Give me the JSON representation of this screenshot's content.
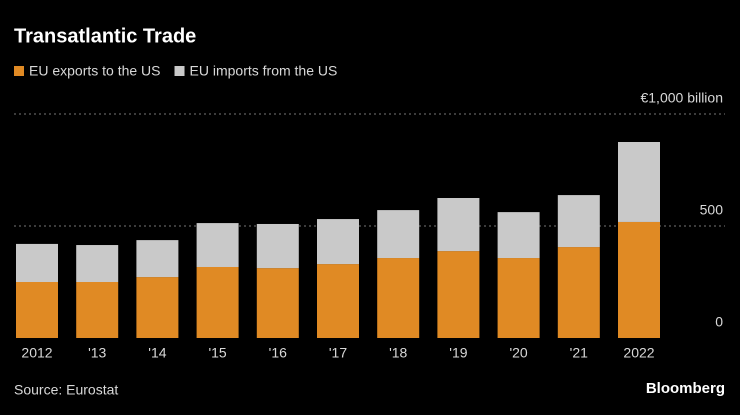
{
  "chart_data": {
    "type": "bar",
    "stacked": true,
    "title": "Transatlantic Trade",
    "categories": [
      "2012",
      "'13",
      "'14",
      "'15",
      "'16",
      "'17",
      "'18",
      "'19",
      "'20",
      "'21",
      "2022"
    ],
    "series": [
      {
        "name": "EU exports to the US",
        "color": "#e08a24",
        "values": [
          250,
          250,
          272,
          317,
          312,
          330,
          357,
          388,
          357,
          406,
          518
        ]
      },
      {
        "name": "EU imports from the US",
        "color": "#c9c9c9",
        "values": [
          170,
          165,
          165,
          196,
          197,
          201,
          214,
          237,
          205,
          232,
          357
        ]
      }
    ],
    "ylim": [
      0,
      1000
    ],
    "yticks": [
      0,
      500,
      {
        "value": 1000,
        "label": "€1,000 billion"
      }
    ],
    "grid": true,
    "source": "Source: Eurostat",
    "brand": "Bloomberg"
  }
}
